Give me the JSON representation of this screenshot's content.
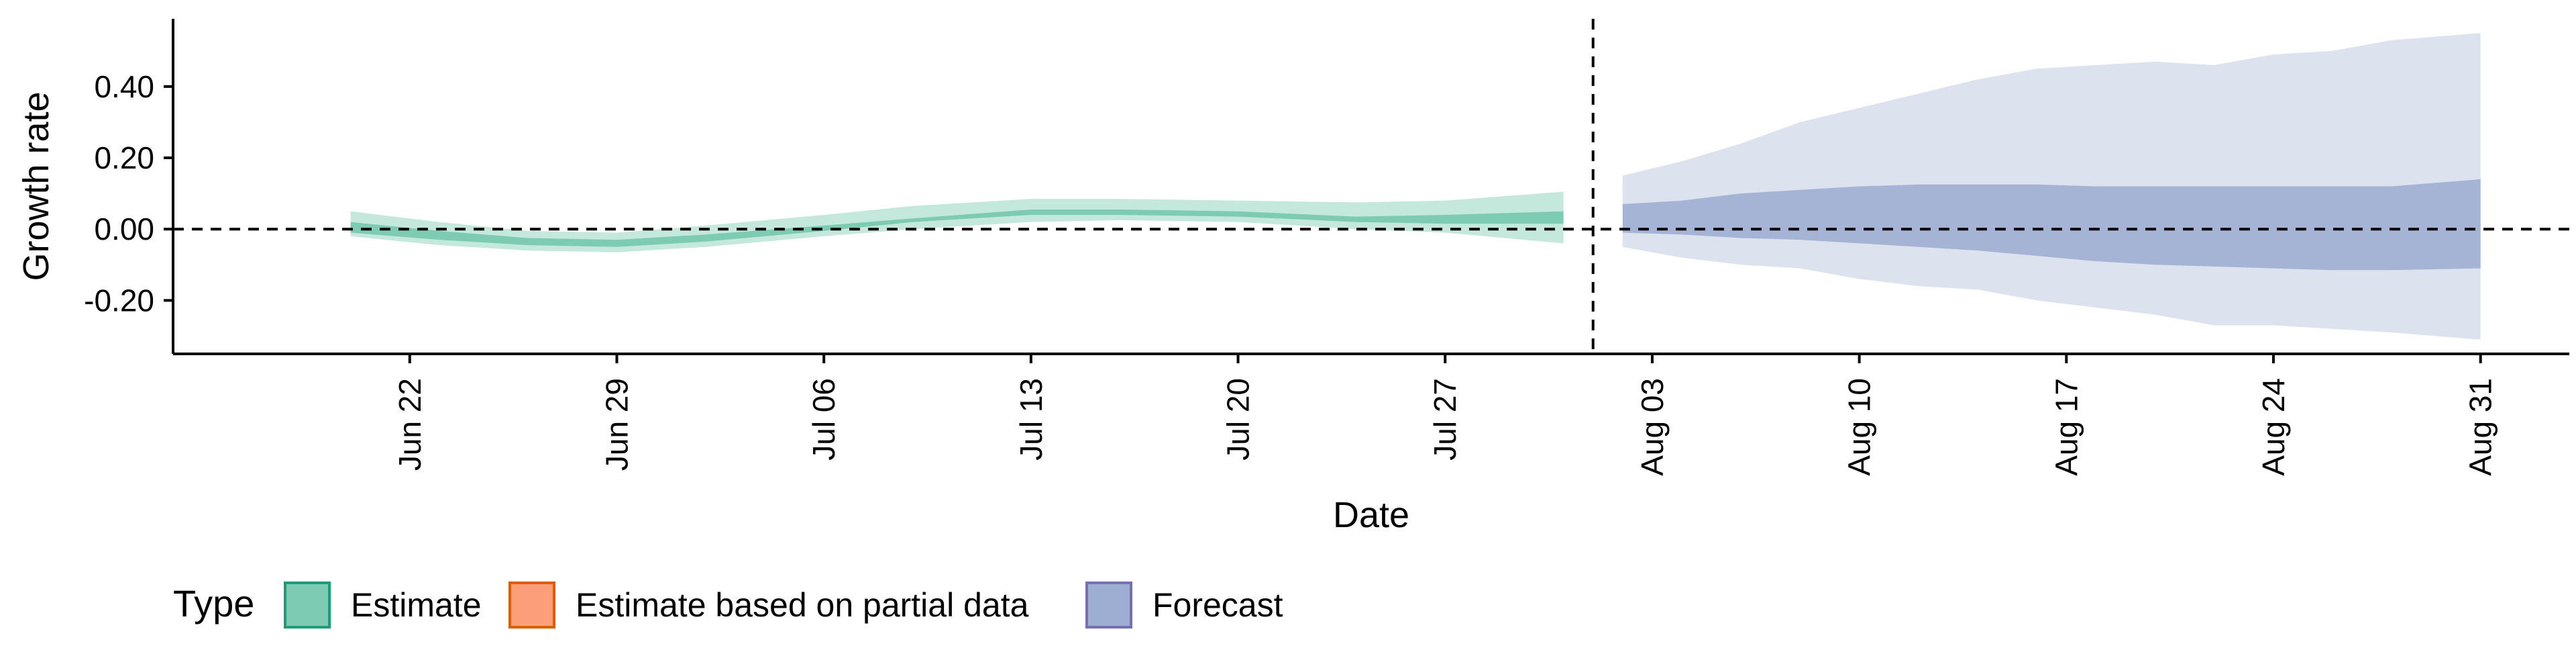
{
  "chart_data": {
    "type": "area",
    "xlabel": "Date",
    "ylabel": "Growth rate",
    "x_type": "date",
    "x_ticks": [
      "Jun 22",
      "Jun 29",
      "Jul 06",
      "Jul 13",
      "Jul 20",
      "Jul 27",
      "Aug 03",
      "Aug 10",
      "Aug 17",
      "Aug 24",
      "Aug 31"
    ],
    "x_tick_dates": [
      "2020-06-22",
      "2020-06-29",
      "2020-07-06",
      "2020-07-13",
      "2020-07-20",
      "2020-07-27",
      "2020-08-03",
      "2020-08-10",
      "2020-08-17",
      "2020-08-24",
      "2020-08-31"
    ],
    "xlim": [
      "2020-06-14",
      "2020-09-03"
    ],
    "y_ticks": [
      "0.40",
      "0.20",
      "0.00",
      "-0.20"
    ],
    "y_tick_values": [
      0.4,
      0.2,
      0.0,
      -0.2
    ],
    "ylim": [
      -0.35,
      0.59
    ],
    "horizontal_reference_line": 0.0,
    "vertical_reference_line": "2020-08-01",
    "grid": false,
    "legend": {
      "title": "Type",
      "placement": "bottom",
      "entries": [
        {
          "label": "Estimate",
          "fill": "#66c2a5",
          "border": "#1b9e77"
        },
        {
          "label": "Estimate based on partial data",
          "fill": "#fc8d62",
          "border": "#d95f02"
        },
        {
          "label": "Forecast",
          "fill": "#8da0cb",
          "border": "#7570b3"
        }
      ]
    },
    "series": [
      {
        "name": "Estimate",
        "color": "#1b9e77",
        "x": [
          "2020-06-20",
          "2020-06-23",
          "2020-06-26",
          "2020-06-29",
          "2020-07-02",
          "2020-07-06",
          "2020-07-09",
          "2020-07-13",
          "2020-07-16",
          "2020-07-20",
          "2020-07-24",
          "2020-07-27",
          "2020-07-31"
        ],
        "outer_lower": [
          -0.02,
          -0.045,
          -0.06,
          -0.065,
          -0.05,
          -0.02,
          0.0,
          0.02,
          0.025,
          0.02,
          0.0,
          -0.01,
          -0.04
        ],
        "inner_lower": [
          -0.01,
          -0.03,
          -0.045,
          -0.05,
          -0.035,
          -0.005,
          0.02,
          0.04,
          0.04,
          0.035,
          0.02,
          0.015,
          0.015
        ],
        "inner_upper": [
          0.02,
          -0.005,
          -0.025,
          -0.03,
          -0.015,
          0.01,
          0.03,
          0.055,
          0.055,
          0.05,
          0.035,
          0.04,
          0.05
        ],
        "outer_upper": [
          0.05,
          0.02,
          -0.005,
          -0.01,
          0.01,
          0.04,
          0.065,
          0.085,
          0.085,
          0.08,
          0.075,
          0.08,
          0.105
        ]
      },
      {
        "name": "Forecast",
        "color": "#7570b3",
        "x": [
          "2020-08-02",
          "2020-08-04",
          "2020-08-06",
          "2020-08-08",
          "2020-08-10",
          "2020-08-12",
          "2020-08-14",
          "2020-08-16",
          "2020-08-18",
          "2020-08-20",
          "2020-08-22",
          "2020-08-24",
          "2020-08-26",
          "2020-08-28",
          "2020-08-31"
        ],
        "outer_lower": [
          -0.05,
          -0.08,
          -0.1,
          -0.11,
          -0.14,
          -0.16,
          -0.17,
          -0.2,
          -0.22,
          -0.24,
          -0.27,
          -0.27,
          -0.28,
          -0.29,
          -0.31
        ],
        "inner_lower": [
          -0.01,
          -0.015,
          -0.025,
          -0.03,
          -0.04,
          -0.05,
          -0.06,
          -0.075,
          -0.09,
          -0.1,
          -0.105,
          -0.11,
          -0.115,
          -0.115,
          -0.11
        ],
        "inner_upper": [
          0.07,
          0.08,
          0.1,
          0.11,
          0.12,
          0.125,
          0.125,
          0.125,
          0.12,
          0.12,
          0.12,
          0.12,
          0.12,
          0.12,
          0.14
        ],
        "outer_upper": [
          0.15,
          0.19,
          0.24,
          0.3,
          0.34,
          0.38,
          0.42,
          0.45,
          0.46,
          0.47,
          0.46,
          0.49,
          0.5,
          0.53,
          0.55
        ]
      }
    ]
  }
}
